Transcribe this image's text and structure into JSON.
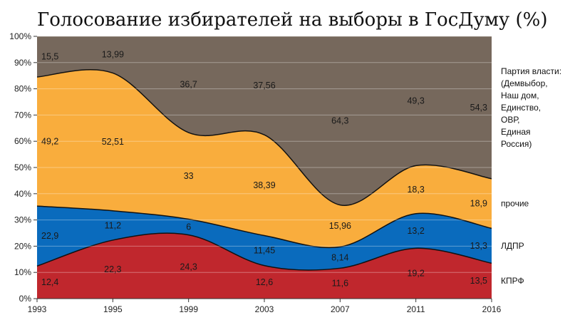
{
  "title": "Голосование избирателей на выборы в ГосДуму (%)",
  "chart_data": {
    "type": "area",
    "stacked": true,
    "title": "Голосование избирателей на выборы в ГосДуму (%)",
    "x": [
      "1993",
      "1995",
      "1999",
      "2003",
      "2007",
      "2011",
      "2016"
    ],
    "ylim": [
      0,
      100
    ],
    "yticks": [
      "0%",
      "10%",
      "20%",
      "30%",
      "40%",
      "50%",
      "60%",
      "70%",
      "80%",
      "90%",
      "100%"
    ],
    "series": [
      {
        "name": "КПРФ",
        "color": "#c0272d",
        "values": [
          12.4,
          22.3,
          24.3,
          12.6,
          11.6,
          19.2,
          13.5
        ],
        "labels": [
          "12,4",
          "22,3",
          "24,3",
          "12,6",
          "11,6",
          "19,2",
          "13,5"
        ]
      },
      {
        "name": "ЛДПР",
        "color": "#0a6bbd",
        "values": [
          22.9,
          11.2,
          6,
          11.45,
          8.14,
          13.2,
          13.3
        ],
        "labels": [
          "22,9",
          "11,2",
          "6",
          "11,45",
          "8,14",
          "13,2",
          "13,3"
        ]
      },
      {
        "name": "прочие",
        "color": "#f9ad3d",
        "values": [
          49.2,
          52.51,
          33,
          38.39,
          15.96,
          18.3,
          18.9
        ],
        "labels": [
          "49,2",
          "52,51",
          "33",
          "38,39",
          "15,96",
          "18,3",
          "18,9"
        ]
      },
      {
        "name": "Партия власти: (Демвыбор, Наш дом, Единство, ОВР, Единая Россия)",
        "color": "#76685c",
        "values": [
          15.5,
          13.99,
          36.7,
          37.56,
          64.3,
          49.3,
          54.3
        ],
        "labels": [
          "15,5",
          "13,99",
          "36,7",
          "37,56",
          "64,3",
          "49,3",
          "54,3"
        ]
      }
    ],
    "legend": {
      "position": "right",
      "entries": [
        {
          "series": 3,
          "lines": [
            "Партия власти:",
            "(Демвыбор,",
            "Наш дом,",
            "Единство,",
            "ОВР,",
            "Единая",
            "Россия)"
          ]
        },
        {
          "series": 2,
          "lines": [
            "прочие"
          ]
        },
        {
          "series": 1,
          "lines": [
            "ЛДПР"
          ]
        },
        {
          "series": 0,
          "lines": [
            "КПРФ"
          ]
        }
      ]
    },
    "grid": true
  }
}
